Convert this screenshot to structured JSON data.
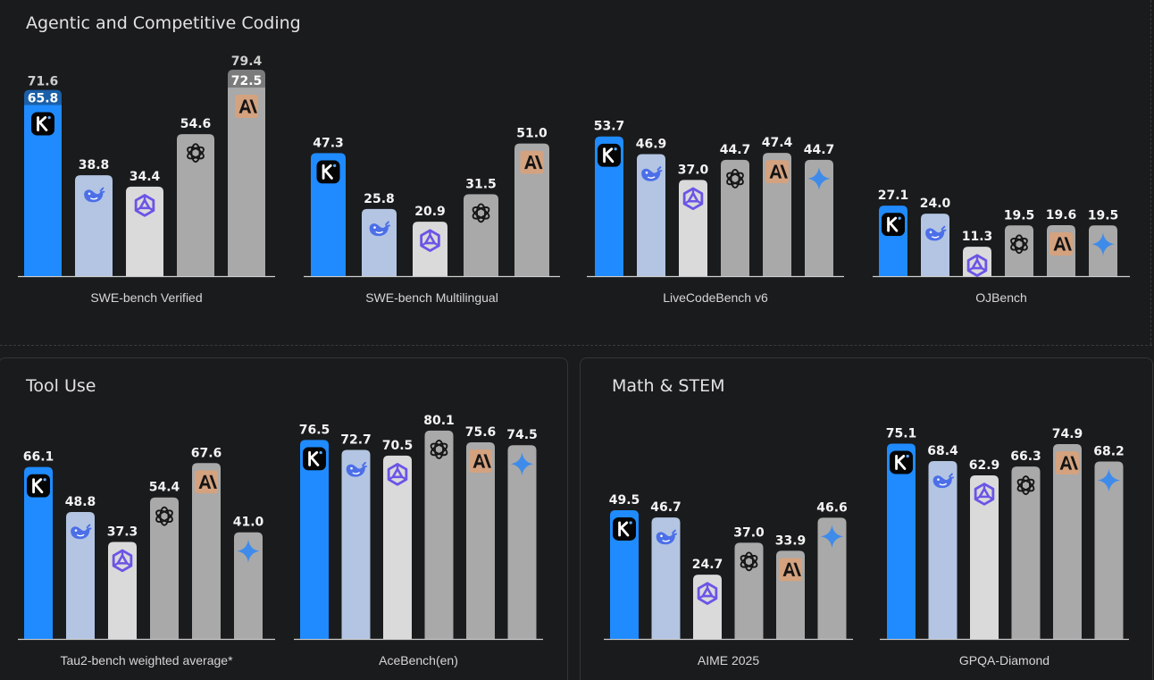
{
  "sections": {
    "coding": "Agentic and Competitive Coding",
    "tool_use": "Tool Use",
    "math": "Math & STEM"
  },
  "colors": {
    "kimi": "#1f8bff",
    "deepseek": "#b3c5e2",
    "qwen": "#dadada",
    "openai": "#a9a9a9",
    "anthropic": "#a9a9a9",
    "gemini": "#a9a9a9",
    "anthropic_badge": "#d4a27f",
    "kimi_top": "#1b5fa8",
    "anthropic_top": "#7b7b7b"
  },
  "chart_data": [
    {
      "type": "bar",
      "xlabel": "SWE-bench Verified",
      "ylim": [
        0,
        85
      ],
      "bars": [
        {
          "model": "kimi",
          "icon": "kimi-k-icon",
          "value": 65.8,
          "top_value": 71.6
        },
        {
          "model": "deepseek",
          "icon": "deepseek-whale-icon",
          "value": 38.8
        },
        {
          "model": "qwen",
          "icon": "qwen-star-icon",
          "value": 34.4
        },
        {
          "model": "openai",
          "icon": "openai-knot-icon",
          "value": 54.6
        },
        {
          "model": "anthropic",
          "icon": "anthropic-logo-icon",
          "value": 72.5,
          "top_value": 79.4
        }
      ]
    },
    {
      "type": "bar",
      "xlabel": "SWE-bench Multilingual",
      "ylim": [
        0,
        85
      ],
      "bars": [
        {
          "model": "kimi",
          "icon": "kimi-k-icon",
          "value": 47.3
        },
        {
          "model": "deepseek",
          "icon": "deepseek-whale-icon",
          "value": 25.8
        },
        {
          "model": "qwen",
          "icon": "qwen-star-icon",
          "value": 20.9
        },
        {
          "model": "openai",
          "icon": "openai-knot-icon",
          "value": 31.5
        },
        {
          "model": "anthropic",
          "icon": "anthropic-logo-icon",
          "value": 51.0
        }
      ]
    },
    {
      "type": "bar",
      "xlabel": "LiveCodeBench v6",
      "ylim": [
        0,
        85
      ],
      "bars": [
        {
          "model": "kimi",
          "icon": "kimi-k-icon",
          "value": 53.7
        },
        {
          "model": "deepseek",
          "icon": "deepseek-whale-icon",
          "value": 46.9
        },
        {
          "model": "qwen",
          "icon": "qwen-star-icon",
          "value": 37.0
        },
        {
          "model": "openai",
          "icon": "openai-knot-icon",
          "value": 44.7
        },
        {
          "model": "anthropic",
          "icon": "anthropic-logo-icon",
          "value": 47.4
        },
        {
          "model": "gemini",
          "icon": "gemini-sparkle-icon",
          "value": 44.7
        }
      ]
    },
    {
      "type": "bar",
      "xlabel": "OJBench",
      "ylim": [
        0,
        85
      ],
      "bars": [
        {
          "model": "kimi",
          "icon": "kimi-k-icon",
          "value": 27.1
        },
        {
          "model": "deepseek",
          "icon": "deepseek-whale-icon",
          "value": 24.0
        },
        {
          "model": "qwen",
          "icon": "qwen-star-icon",
          "value": 11.3
        },
        {
          "model": "openai",
          "icon": "openai-knot-icon",
          "value": 19.5
        },
        {
          "model": "anthropic",
          "icon": "anthropic-logo-icon",
          "value": 19.6
        },
        {
          "model": "gemini",
          "icon": "gemini-sparkle-icon",
          "value": 19.5
        }
      ]
    },
    {
      "type": "bar",
      "xlabel": "Tau2-bench weighted average*",
      "ylim": [
        0,
        90
      ],
      "bars": [
        {
          "model": "kimi",
          "icon": "kimi-k-icon",
          "value": 66.1
        },
        {
          "model": "deepseek",
          "icon": "deepseek-whale-icon",
          "value": 48.8
        },
        {
          "model": "qwen",
          "icon": "qwen-star-icon",
          "value": 37.3
        },
        {
          "model": "openai",
          "icon": "openai-knot-icon",
          "value": 54.4
        },
        {
          "model": "anthropic",
          "icon": "anthropic-logo-icon",
          "value": 67.6
        },
        {
          "model": "gemini",
          "icon": "gemini-sparkle-icon",
          "value": 41.0
        }
      ]
    },
    {
      "type": "bar",
      "xlabel": "AceBench(en)",
      "ylim": [
        0,
        90
      ],
      "bars": [
        {
          "model": "kimi",
          "icon": "kimi-k-icon",
          "value": 76.5
        },
        {
          "model": "deepseek",
          "icon": "deepseek-whale-icon",
          "value": 72.7
        },
        {
          "model": "qwen",
          "icon": "qwen-star-icon",
          "value": 70.5
        },
        {
          "model": "openai",
          "icon": "openai-knot-icon",
          "value": 80.1
        },
        {
          "model": "anthropic",
          "icon": "anthropic-logo-icon",
          "value": 75.6
        },
        {
          "model": "gemini",
          "icon": "gemini-sparkle-icon",
          "value": 74.5
        }
      ]
    },
    {
      "type": "bar",
      "xlabel": "AIME 2025",
      "ylim": [
        0,
        90
      ],
      "bars": [
        {
          "model": "kimi",
          "icon": "kimi-k-icon",
          "value": 49.5
        },
        {
          "model": "deepseek",
          "icon": "deepseek-whale-icon",
          "value": 46.7
        },
        {
          "model": "qwen",
          "icon": "qwen-star-icon",
          "value": 24.7
        },
        {
          "model": "openai",
          "icon": "openai-knot-icon",
          "value": 37.0
        },
        {
          "model": "anthropic",
          "icon": "anthropic-logo-icon",
          "value": 33.9
        },
        {
          "model": "gemini",
          "icon": "gemini-sparkle-icon",
          "value": 46.6
        }
      ]
    },
    {
      "type": "bar",
      "xlabel": "GPQA-Diamond",
      "ylim": [
        0,
        90
      ],
      "bars": [
        {
          "model": "kimi",
          "icon": "kimi-k-icon",
          "value": 75.1
        },
        {
          "model": "deepseek",
          "icon": "deepseek-whale-icon",
          "value": 68.4
        },
        {
          "model": "qwen",
          "icon": "qwen-star-icon",
          "value": 62.9
        },
        {
          "model": "openai",
          "icon": "openai-knot-icon",
          "value": 66.3
        },
        {
          "model": "anthropic",
          "icon": "anthropic-logo-icon",
          "value": 74.9
        },
        {
          "model": "gemini",
          "icon": "gemini-sparkle-icon",
          "value": 68.2
        }
      ]
    }
  ]
}
